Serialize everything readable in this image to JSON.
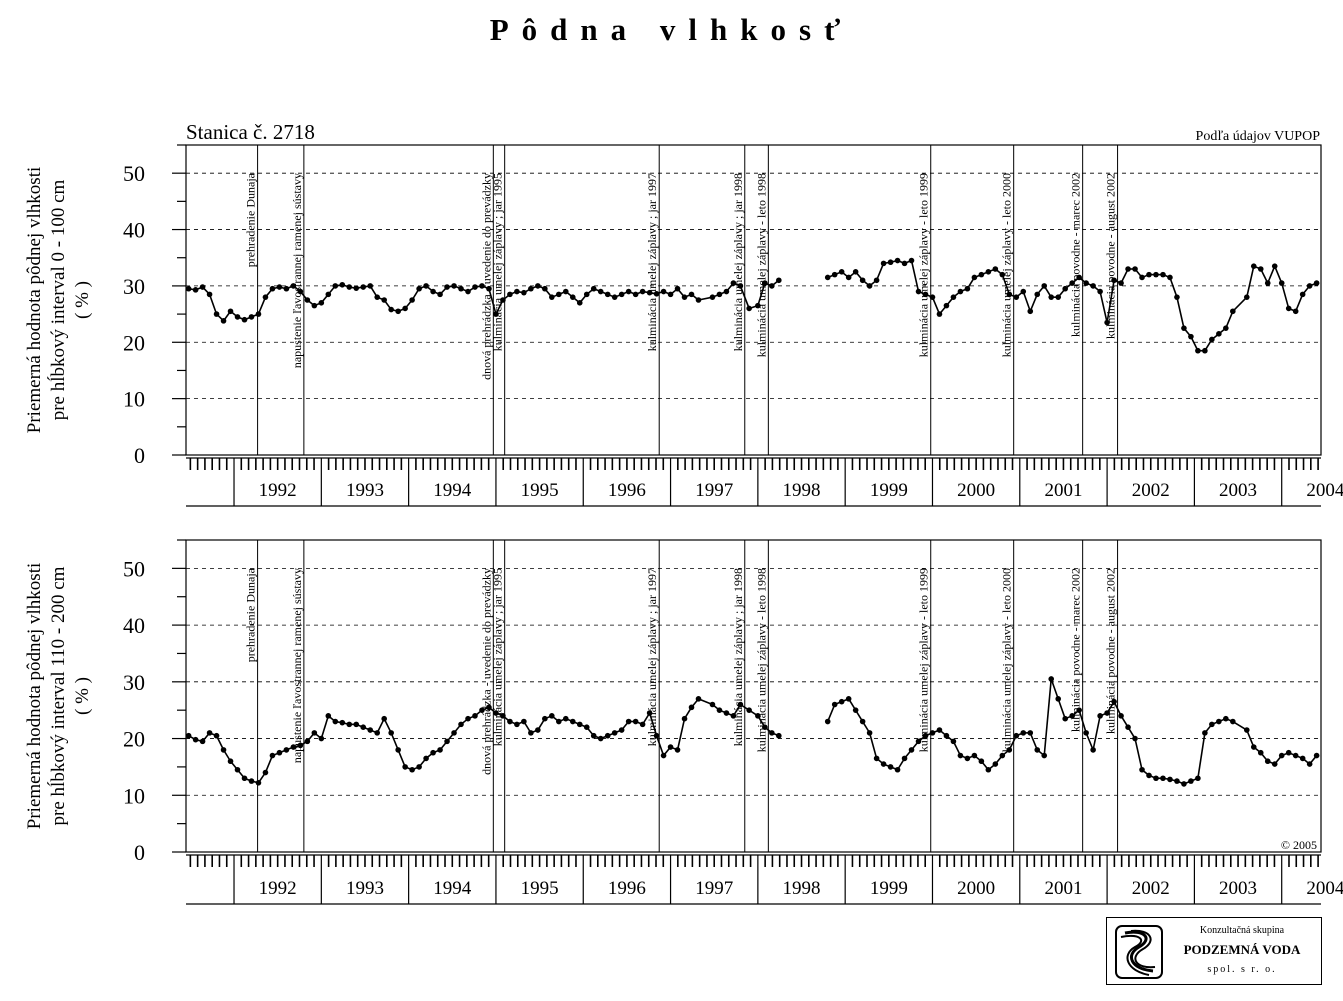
{
  "title": "Pôdna vlhkosť",
  "station_label": "Stanica č. 2718",
  "source_label": "Podľa údajov VUPOP",
  "copyright": "© 2005",
  "logo": {
    "top": "Konzultačná skupina",
    "main": "PODZEMNÁ VODA",
    "bottom": "spol. s r. o."
  },
  "chart_data": [
    {
      "type": "scatter",
      "ylabel": [
        "Priemerná hodnota pôdnej vlhkosti",
        "pre hĺbkový interval 0 - 100 cm",
        "( % )"
      ],
      "ylim": [
        0,
        55
      ],
      "yticks": [
        0,
        10,
        20,
        30,
        40,
        50
      ],
      "xlim": [
        1991.45,
        2004.45
      ],
      "year_labels": [
        "1992",
        "1993",
        "1994",
        "1995",
        "1996",
        "1997",
        "1998",
        "1999",
        "2000",
        "2001",
        "2002",
        "2003",
        "2004"
      ],
      "grid": "horizontal dashed",
      "events": [
        {
          "x": 1992.27,
          "label": "prehradenie Dunaja"
        },
        {
          "x": 1992.8,
          "label": "napustenie ľavostrannej ramenej sústavy"
        },
        {
          "x": 1994.97,
          "label": "dnová prehrádzka - uvedenie do prevádzky"
        },
        {
          "x": 1995.1,
          "label": "kulminácia umelej záplavy ; jar 1995"
        },
        {
          "x": 1996.87,
          "label": "kulminácia umelej záplavy ; jar 1997"
        },
        {
          "x": 1997.85,
          "label": "kulminácia umelej záplavy ; jar 1998"
        },
        {
          "x": 1998.12,
          "label": "kulminácia umelej záplavy - leto 1998"
        },
        {
          "x": 1999.98,
          "label": "kulminácia umelej záplavy - leto 1999"
        },
        {
          "x": 2000.93,
          "label": "kulminácia umelej záplavy - leto 2000"
        },
        {
          "x": 2001.72,
          "label": "kulminácia povodne - marec 2002"
        },
        {
          "x": 2002.12,
          "label": "kulminácia povodne - august 2002"
        }
      ],
      "series": [
        {
          "x": [
            1991.48,
            1991.56,
            1991.64,
            1991.72,
            1991.8,
            1991.88,
            1991.96,
            1992.04,
            1992.12,
            1992.2,
            1992.28,
            1992.36,
            1992.44,
            1992.52,
            1992.6,
            1992.68,
            1992.76,
            1992.84,
            1992.92,
            1993.0,
            1993.08,
            1993.16,
            1993.24,
            1993.32,
            1993.4,
            1993.48,
            1993.56,
            1993.64,
            1993.72,
            1993.8,
            1993.88,
            1993.96,
            1994.04,
            1994.12,
            1994.2,
            1994.28,
            1994.36,
            1994.44,
            1994.52,
            1994.6,
            1994.68,
            1994.76,
            1994.84,
            1994.92,
            1995.0,
            1995.08,
            1995.16,
            1995.24,
            1995.32,
            1995.4,
            1995.48,
            1995.56,
            1995.64,
            1995.72,
            1995.8,
            1995.88,
            1995.96,
            1996.04,
            1996.12,
            1996.2,
            1996.28,
            1996.36,
            1996.44,
            1996.52,
            1996.6,
            1996.68,
            1996.76,
            1996.84,
            1996.92,
            1997.0,
            1997.08,
            1997.16,
            1997.24,
            1997.32,
            1997.48,
            1997.56,
            1997.64,
            1997.72,
            1997.8,
            1997.9,
            1998.0,
            1998.08,
            1998.16,
            1998.24,
            1998.8,
            1998.88,
            1998.96,
            1999.04,
            1999.12,
            1999.2,
            1999.28,
            1999.36,
            1999.44,
            1999.52,
            1999.6,
            1999.68,
            1999.76,
            1999.84,
            1999.92,
            2000.0,
            2000.08,
            2000.16,
            2000.24,
            2000.32,
            2000.4,
            2000.48,
            2000.56,
            2000.64,
            2000.72,
            2000.8,
            2000.88,
            2000.96,
            2001.04,
            2001.12,
            2001.2,
            2001.28,
            2001.36,
            2001.44,
            2001.52,
            2001.6,
            2001.68,
            2001.76,
            2001.84,
            2001.92,
            2002.0,
            2002.08,
            2002.16,
            2002.24,
            2002.32,
            2002.4,
            2002.48,
            2002.56,
            2002.64,
            2002.72,
            2002.8,
            2002.88,
            2002.96,
            2003.04,
            2003.12,
            2003.2,
            2003.28,
            2003.36,
            2003.44,
            2003.6,
            2003.68,
            2003.76,
            2003.84,
            2003.92,
            2004.0,
            2004.08,
            2004.16,
            2004.24,
            2004.32,
            2004.4
          ],
          "y": [
            29.5,
            29.3,
            29.8,
            28.5,
            25.0,
            23.8,
            25.5,
            24.5,
            24.0,
            24.5,
            25.0,
            28.0,
            29.5,
            29.8,
            29.5,
            30.0,
            29.0,
            27.5,
            26.5,
            27.0,
            28.5,
            30.0,
            30.2,
            29.8,
            29.6,
            29.8,
            30.0,
            28.0,
            27.5,
            25.8,
            25.5,
            26.0,
            27.5,
            29.5,
            30.0,
            29.0,
            28.5,
            29.8,
            30.0,
            29.5,
            29.0,
            29.8,
            30.0,
            29.5,
            25.0,
            27.5,
            28.5,
            29.0,
            28.8,
            29.5,
            30.0,
            29.5,
            28.0,
            28.5,
            29.0,
            28.0,
            27.0,
            28.5,
            29.5,
            29.0,
            28.5,
            28.0,
            28.5,
            29.0,
            28.5,
            29.0,
            28.8,
            28.6,
            29.0,
            28.5,
            29.5,
            28.0,
            28.5,
            27.5,
            28.0,
            28.5,
            29.0,
            30.5,
            30.0,
            26.0,
            26.5,
            30.5,
            30.0,
            31.0,
            31.5,
            32.0,
            32.5,
            31.5,
            32.5,
            31.0,
            30.0,
            31.0,
            34.0,
            34.2,
            34.5,
            34.0,
            34.5,
            29.0,
            28.5,
            28.0,
            25.0,
            26.5,
            28.0,
            29.0,
            29.5,
            31.5,
            32.0,
            32.5,
            33.0,
            32.0,
            28.5,
            28.0,
            29.0,
            25.5,
            28.5,
            30.0,
            28.0,
            28.0,
            29.5,
            30.5,
            31.5,
            30.5,
            30.0,
            29.0,
            23.5,
            31.0,
            30.5,
            33.0,
            33.0,
            31.5,
            32.0,
            32.0,
            32.0,
            31.5,
            28.0,
            22.5,
            21.0,
            18.5,
            18.5,
            20.5,
            21.5,
            22.5,
            25.5,
            28.0,
            33.5,
            33.0,
            30.5,
            33.5,
            30.5,
            26.0,
            25.5,
            28.5,
            30.0,
            30.5
          ]
        }
      ]
    },
    {
      "type": "scatter",
      "ylabel": [
        "Priemerná hodnota pôdnej vlhkosti",
        "pre hĺbkový interval 110 - 200 cm",
        "( % )"
      ],
      "ylim": [
        0,
        55
      ],
      "yticks": [
        0,
        10,
        20,
        30,
        40,
        50
      ],
      "xlim": [
        1991.45,
        2004.45
      ],
      "year_labels": [
        "1992",
        "1993",
        "1994",
        "1995",
        "1996",
        "1997",
        "1998",
        "1999",
        "2000",
        "2001",
        "2002",
        "2003",
        "2004"
      ],
      "grid": "horizontal dashed",
      "events": [
        {
          "x": 1992.27,
          "label": "prehradenie Dunaja"
        },
        {
          "x": 1992.8,
          "label": "napustenie ľavostrannej ramenej sústavy"
        },
        {
          "x": 1994.97,
          "label": "dnová prehrádzka - uvedenie do prevádzky"
        },
        {
          "x": 1995.1,
          "label": "kulminácia umelej záplavy ; jar 1995"
        },
        {
          "x": 1996.87,
          "label": "kulminácia umelej záplavy ; jar 1997"
        },
        {
          "x": 1997.85,
          "label": "kulminácia umelej záplavy ; jar 1998"
        },
        {
          "x": 1998.12,
          "label": "kulminácia umelej záplavy - leto 1998"
        },
        {
          "x": 1999.98,
          "label": "kulminácia umelej záplavy - leto 1999"
        },
        {
          "x": 2000.93,
          "label": "kulminácia umelej záplavy - leto 2000"
        },
        {
          "x": 2001.72,
          "label": "kulminácia povodne - marec 2002"
        },
        {
          "x": 2002.12,
          "label": "kulminácia povodne - august 2002"
        }
      ],
      "series": [
        {
          "x": [
            1991.48,
            1991.56,
            1991.64,
            1991.72,
            1991.8,
            1991.88,
            1991.96,
            1992.04,
            1992.12,
            1992.2,
            1992.28,
            1992.36,
            1992.44,
            1992.52,
            1992.6,
            1992.68,
            1992.76,
            1992.84,
            1992.92,
            1993.0,
            1993.08,
            1993.16,
            1993.24,
            1993.32,
            1993.4,
            1993.48,
            1993.56,
            1993.64,
            1993.72,
            1993.8,
            1993.88,
            1993.96,
            1994.04,
            1994.12,
            1994.2,
            1994.28,
            1994.36,
            1994.44,
            1994.52,
            1994.6,
            1994.68,
            1994.76,
            1994.84,
            1994.92,
            1995.0,
            1995.08,
            1995.16,
            1995.24,
            1995.32,
            1995.4,
            1995.48,
            1995.56,
            1995.64,
            1995.72,
            1995.8,
            1995.88,
            1995.96,
            1996.04,
            1996.12,
            1996.2,
            1996.28,
            1996.36,
            1996.44,
            1996.52,
            1996.6,
            1996.68,
            1996.76,
            1996.84,
            1996.92,
            1997.0,
            1997.08,
            1997.16,
            1997.24,
            1997.32,
            1997.48,
            1997.56,
            1997.64,
            1997.72,
            1997.8,
            1997.9,
            1998.0,
            1998.08,
            1998.16,
            1998.24,
            1998.8,
            1998.88,
            1998.96,
            1999.04,
            1999.12,
            1999.2,
            1999.28,
            1999.36,
            1999.44,
            1999.52,
            1999.6,
            1999.68,
            1999.76,
            1999.84,
            1999.92,
            2000.0,
            2000.08,
            2000.16,
            2000.24,
            2000.32,
            2000.4,
            2000.48,
            2000.56,
            2000.64,
            2000.72,
            2000.8,
            2000.88,
            2000.96,
            2001.04,
            2001.12,
            2001.2,
            2001.28,
            2001.36,
            2001.44,
            2001.52,
            2001.6,
            2001.68,
            2001.76,
            2001.84,
            2001.92,
            2002.0,
            2002.08,
            2002.16,
            2002.24,
            2002.32,
            2002.4,
            2002.48,
            2002.56,
            2002.64,
            2002.72,
            2002.8,
            2002.88,
            2002.96,
            2003.04,
            2003.12,
            2003.2,
            2003.28,
            2003.36,
            2003.44,
            2003.6,
            2003.68,
            2003.76,
            2003.84,
            2003.92,
            2004.0,
            2004.08,
            2004.16,
            2004.24,
            2004.32,
            2004.4
          ],
          "y": [
            20.5,
            19.8,
            19.5,
            21.0,
            20.5,
            18.0,
            16.0,
            14.5,
            13.0,
            12.5,
            12.2,
            14.0,
            17.0,
            17.5,
            18.0,
            18.5,
            18.8,
            19.5,
            21.0,
            20.0,
            24.0,
            23.0,
            22.8,
            22.5,
            22.5,
            22.0,
            21.5,
            21.0,
            23.5,
            21.0,
            18.0,
            15.0,
            14.5,
            15.0,
            16.5,
            17.5,
            18.0,
            19.5,
            21.0,
            22.5,
            23.5,
            24.0,
            25.0,
            25.5,
            24.5,
            24.0,
            23.0,
            22.5,
            23.0,
            21.0,
            21.5,
            23.5,
            24.0,
            23.0,
            23.5,
            23.0,
            22.5,
            22.0,
            20.5,
            20.0,
            20.5,
            21.0,
            21.5,
            23.0,
            23.0,
            22.5,
            24.5,
            20.5,
            17.0,
            18.5,
            18.0,
            23.5,
            25.5,
            27.0,
            26.0,
            25.0,
            24.5,
            24.0,
            26.0,
            25.0,
            24.0,
            22.0,
            21.0,
            20.5,
            23.0,
            26.0,
            26.5,
            27.0,
            25.0,
            23.0,
            21.0,
            16.5,
            15.5,
            15.0,
            14.5,
            16.5,
            18.0,
            19.5,
            20.5,
            21.0,
            21.5,
            20.5,
            19.5,
            17.0,
            16.5,
            17.0,
            16.0,
            14.5,
            15.5,
            17.0,
            18.0,
            20.5,
            21.0,
            21.0,
            18.0,
            17.0,
            30.5,
            27.0,
            23.5,
            24.0,
            25.0,
            21.0,
            18.0,
            24.0,
            24.5,
            26.5,
            24.0,
            22.0,
            20.0,
            14.5,
            13.5,
            13.0,
            13.0,
            12.8,
            12.5,
            12.0,
            12.5,
            13.0,
            21.0,
            22.5,
            23.0,
            23.5,
            23.0,
            21.5,
            18.5,
            17.5,
            16.0,
            15.5,
            17.0,
            17.5,
            17.0,
            16.5,
            15.5,
            17.0
          ]
        }
      ]
    }
  ]
}
